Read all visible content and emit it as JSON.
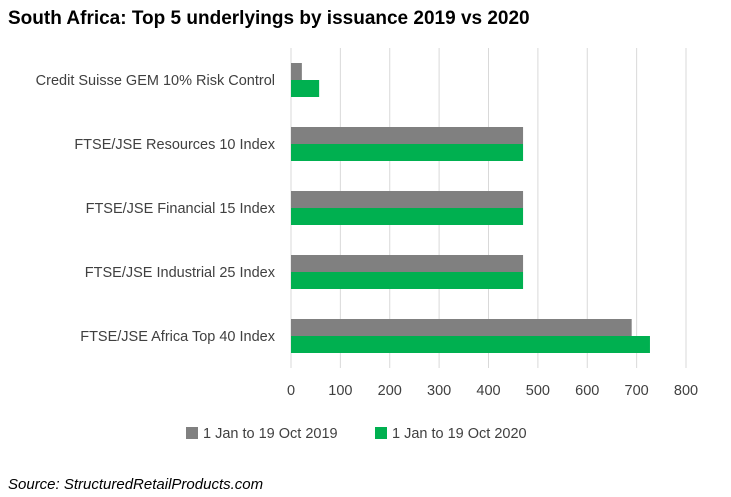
{
  "title": "South Africa: Top 5 underlyings by issuance 2019 vs 2020",
  "source": "Source: StructuredRetailProducts.com",
  "chart_data": {
    "type": "bar",
    "orientation": "horizontal",
    "categories": [
      "Credit Suisse GEM 10% Risk Control",
      "FTSE/JSE Resources 10 Index",
      "FTSE/JSE Financial 15 Index",
      "FTSE/JSE Industrial 25 Index",
      "FTSE/JSE Africa Top 40 Index"
    ],
    "series": [
      {
        "name": "1 Jan to 19 Oct 2019",
        "color": "#808080",
        "values": [
          22,
          470,
          470,
          470,
          690
        ]
      },
      {
        "name": "1 Jan to 19 Oct 2020",
        "color": "#00b050",
        "values": [
          57,
          470,
          470,
          470,
          727
        ]
      }
    ],
    "xlim": [
      0,
      800
    ],
    "xticks": [
      "0",
      "100",
      "200",
      "300",
      "400",
      "500",
      "600",
      "700",
      "800"
    ],
    "grid": "vertical",
    "legend_position": "bottom"
  }
}
